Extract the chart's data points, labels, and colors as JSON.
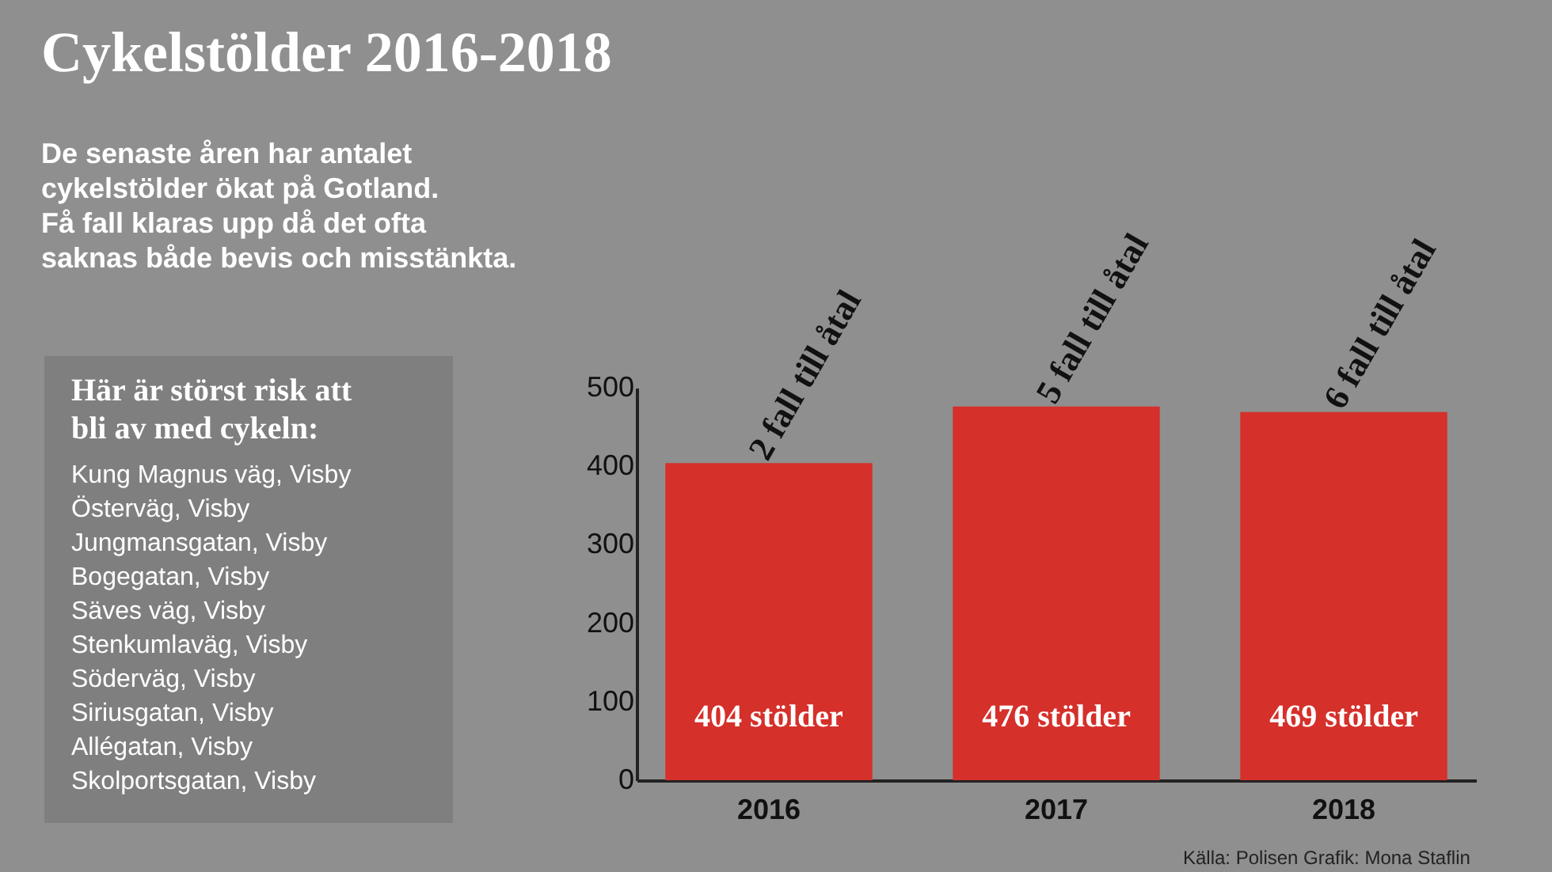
{
  "chart_data": {
    "type": "bar",
    "title": "Cykelstölder 2016-2018",
    "subtitle": "De senaste åren har antalet\ncykelstölder ökat på Gotland.\nFå fall klaras upp då det ofta\nsaknas både bevis och misstänkta.",
    "categories": [
      "2016",
      "2017",
      "2018"
    ],
    "values": [
      404,
      476,
      469
    ],
    "color": "#d5302a",
    "value_labels": [
      "404 stölder",
      "476 stölder",
      "469 stölder"
    ],
    "ylim": [
      0,
      500
    ],
    "yticks": [
      0,
      100,
      200,
      300,
      400,
      500
    ],
    "grid": false,
    "annotations": [
      {
        "text": "2 fall till åtal",
        "x": "2016",
        "y": 404
      },
      {
        "text": "5 fall till åtal",
        "x": "2017",
        "y": 476
      },
      {
        "text": "6 fall till åtal",
        "x": "2018",
        "y": 469
      },
      "Här är störst risk att\nbli av med cykeln:",
      "Kung Magnus väg, Visby\nÖsterväg, Visby\nJungmansgatan, Visby\nBogegatan, Visby\nSäves väg, Visby\nStenkumlaväg, Visby\nSöderväg, Visby\nSiriusgatan, Visby\nAllégatan, Visby\nSkolportsgatan, Visby",
      "Källa: Polisen Grafik: Mona Staflin"
    ]
  }
}
